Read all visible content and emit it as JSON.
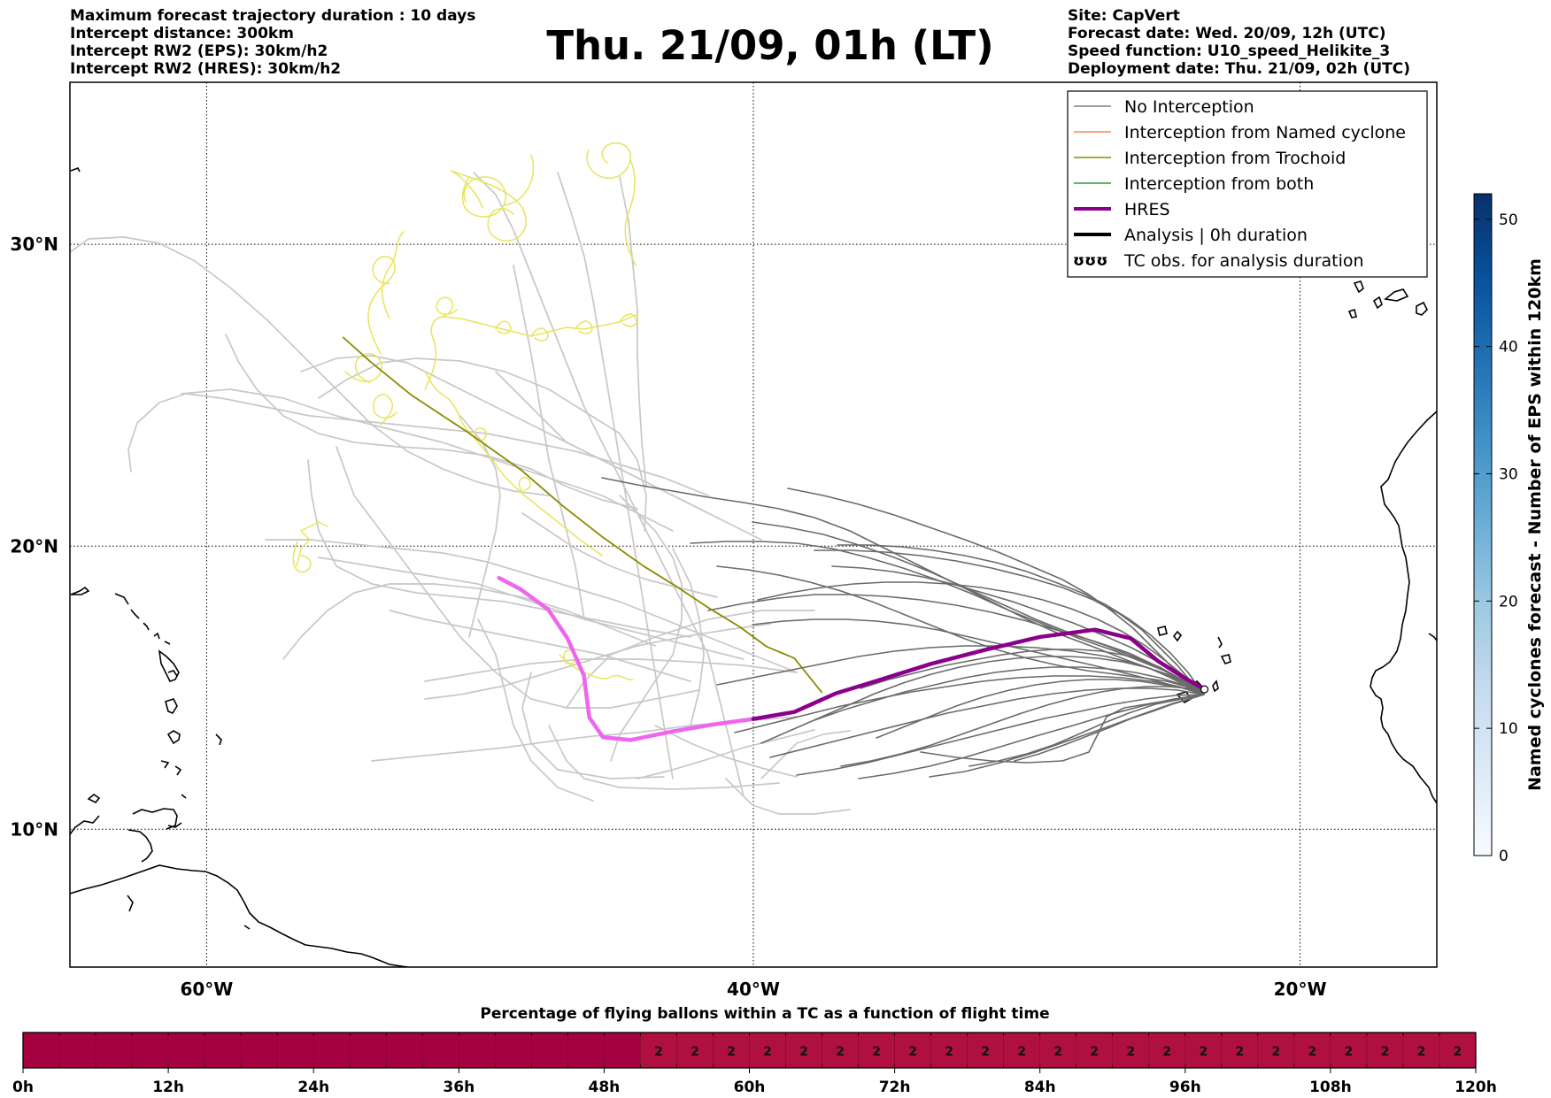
{
  "header": {
    "left_lines": [
      "Maximum forecast trajectory duration : 10 days",
      "Intercept distance: 300km",
      "Intercept RW2 (EPS):  30km/h2",
      "Intercept RW2 (HRES): 30km/h2"
    ],
    "title": "Thu. 21/09, 01h (LT)",
    "right_lines": [
      "Site: CapVert",
      "Forecast date: Wed. 20/09, 12h (UTC)",
      "Speed function: U10_speed_Helikite_3",
      "Deployment date: Thu. 21/09, 02h (UTC)"
    ]
  },
  "map": {
    "lon_range": [
      -65,
      -15
    ],
    "lat_range": [
      5,
      35
    ],
    "projection": "mercator",
    "lon_ticks": [
      {
        "lon": -60,
        "label": "60°W"
      },
      {
        "lon": -40,
        "label": "40°W"
      },
      {
        "lon": -20,
        "label": "20°W"
      }
    ],
    "lat_ticks": [
      {
        "lat": 30,
        "label": "30°N"
      },
      {
        "lat": 20,
        "label": "20°N"
      },
      {
        "lat": 10,
        "label": "10°N"
      }
    ],
    "launch_site": {
      "lon": -23.5,
      "lat": 15.0
    },
    "hres_track": [
      [
        -23.5,
        15.0
      ],
      [
        -24.3,
        15.45
      ],
      [
        -25.2,
        16.0
      ],
      [
        -26.2,
        16.8
      ],
      [
        -27.5,
        17.1
      ],
      [
        -29.5,
        16.85
      ],
      [
        -31.5,
        16.4
      ],
      [
        -33.5,
        15.9
      ],
      [
        -35.5,
        15.3
      ],
      [
        -37,
        14.85
      ],
      [
        -38.5,
        14.2
      ],
      [
        -40,
        13.95
      ],
      [
        -41.5,
        13.75
      ],
      [
        -43,
        13.5
      ],
      [
        -44.5,
        13.2
      ],
      [
        -45.5,
        13.3
      ],
      [
        -46,
        14
      ],
      [
        -46.2,
        15.5
      ],
      [
        -46.8,
        16.8
      ],
      [
        -47.5,
        17.8
      ],
      [
        -48.5,
        18.5
      ],
      [
        -49.3,
        18.9
      ]
    ],
    "hres_purple_points": 12,
    "trochoid_track": [
      [
        -37.5,
        14.9
      ],
      [
        -38.5,
        16.1
      ],
      [
        -39.5,
        16.5
      ],
      [
        -40.5,
        17.2
      ],
      [
        -41.7,
        17.9
      ],
      [
        -42.8,
        18.6
      ],
      [
        -44,
        19.3
      ],
      [
        -45.5,
        20.3
      ],
      [
        -47,
        21.4
      ],
      [
        -48.5,
        22.6
      ],
      [
        -50.5,
        23.9
      ],
      [
        -52.5,
        25.1
      ],
      [
        -54,
        26.2
      ],
      [
        -55,
        27
      ]
    ]
  },
  "legend": {
    "items": [
      {
        "label": "No Interception",
        "color": "#808080",
        "style": "line"
      },
      {
        "label": "Interception from Named cyclone",
        "color": "#ff7f50",
        "style": "line"
      },
      {
        "label": "Interception from Trochoid",
        "color": "#8b8b00",
        "style": "line"
      },
      {
        "label": "Interception from both",
        "color": "#2ca02c",
        "style": "line"
      },
      {
        "label": "HRES",
        "color": "#8b008b",
        "style": "thick"
      },
      {
        "label": "Analysis | 0h duration",
        "color": "#000000",
        "style": "thick"
      },
      {
        "label": "TC obs. for analysis duration",
        "color": "#000000",
        "style": "tc"
      }
    ]
  },
  "colorbar": {
    "label": "Named cyclones forecast - Number of EPS within 120km",
    "range": [
      0,
      52
    ],
    "ticks": [
      "0",
      "10",
      "20",
      "30",
      "40",
      "50"
    ],
    "colors": [
      "#f7fbff",
      "#deebf7",
      "#c6dbef",
      "#9ecae1",
      "#6baed6",
      "#4292c6",
      "#2171b5",
      "#08519c",
      "#08306b"
    ]
  },
  "timeline": {
    "title": "Percentage of flying ballons within a TC as a function of flight time",
    "ticks": [
      "0h",
      "12h",
      "24h",
      "36h",
      "48h",
      "60h",
      "72h",
      "84h",
      "96h",
      "108h",
      "120h"
    ],
    "hours": 120,
    "cells_per_hour": 0.333,
    "base_color": "#a50040",
    "light_color": "#b01040",
    "labeled_from_hour": 51,
    "cell_value": "2"
  }
}
